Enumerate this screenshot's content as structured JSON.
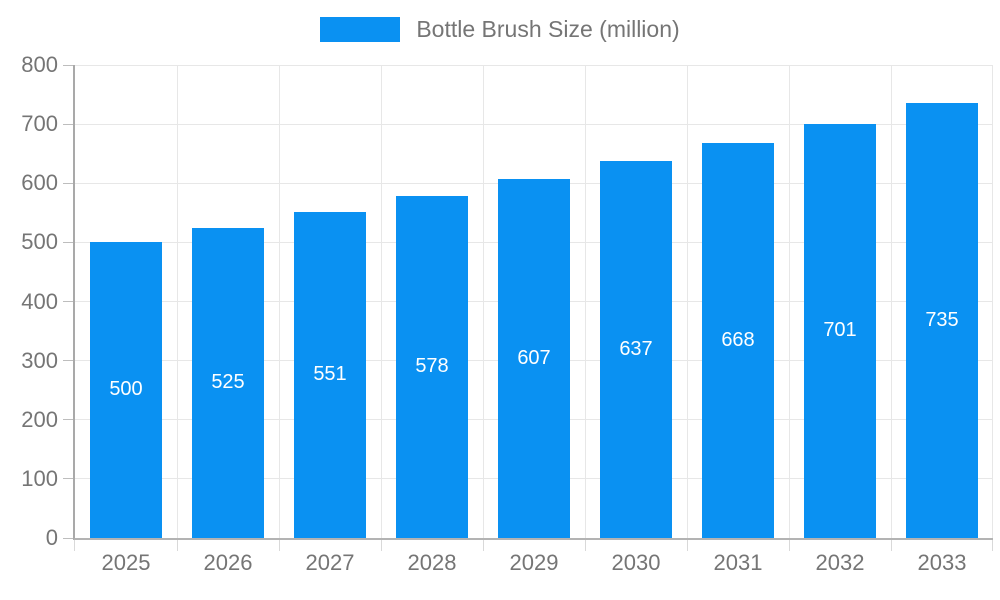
{
  "legend": {
    "label": "Bottle Brush Size (million)"
  },
  "colors": {
    "bar": "#0a91f2",
    "grid": "#e7e7e7",
    "axis": "#a9a9a9",
    "tick": "#bdbdbd",
    "axis_text": "#757575",
    "value_text": "#ffffff"
  },
  "chart_data": {
    "type": "bar",
    "title": "",
    "legend_entries": [
      "Bottle Brush Size (million)"
    ],
    "legend_position": "top-center",
    "categories": [
      "2025",
      "2026",
      "2027",
      "2028",
      "2029",
      "2030",
      "2031",
      "2032",
      "2033"
    ],
    "values": [
      500,
      525,
      551,
      578,
      607,
      637,
      668,
      701,
      735
    ],
    "value_labels_inside_bars": true,
    "xlabel": "",
    "ylabel": "",
    "ylim": [
      0,
      800
    ],
    "ytick_step": 100,
    "yticks": [
      0,
      100,
      200,
      300,
      400,
      500,
      600,
      700,
      800
    ],
    "grid": true
  }
}
